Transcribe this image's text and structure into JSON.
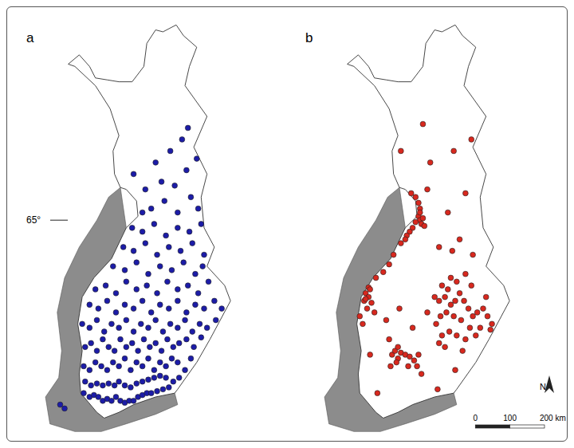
{
  "chart_data": [
    {
      "type": "scatter",
      "title": "a",
      "xlim": [
        16.5,
        35.5
      ],
      "ylim": [
        59.3,
        70.5
      ],
      "yticks": [
        {
          "value": 65,
          "label": "65°"
        }
      ],
      "tick_labels": "y",
      "color": "#1c1ca8",
      "marker": "circle",
      "points": [
        [
          21.6,
          60.5
        ],
        [
          22.0,
          60.4
        ],
        [
          22.3,
          60.45
        ],
        [
          22.6,
          60.4
        ],
        [
          22.9,
          60.3
        ],
        [
          23.2,
          60.35
        ],
        [
          23.5,
          60.3
        ],
        [
          23.8,
          60.4
        ],
        [
          24.1,
          60.3
        ],
        [
          24.4,
          60.25
        ],
        [
          24.7,
          60.3
        ],
        [
          25.0,
          60.3
        ],
        [
          25.3,
          60.4
        ],
        [
          25.6,
          60.45
        ],
        [
          25.9,
          60.5
        ],
        [
          26.2,
          60.5
        ],
        [
          26.6,
          60.55
        ],
        [
          27.0,
          60.6
        ],
        [
          27.4,
          60.65
        ],
        [
          20.0,
          60.2
        ],
        [
          20.3,
          60.1
        ],
        [
          21.7,
          60.8
        ],
        [
          22.1,
          60.7
        ],
        [
          22.5,
          60.75
        ],
        [
          22.9,
          60.7
        ],
        [
          23.3,
          60.75
        ],
        [
          23.7,
          60.7
        ],
        [
          24.0,
          60.8
        ],
        [
          24.4,
          60.7
        ],
        [
          24.8,
          60.65
        ],
        [
          25.2,
          60.75
        ],
        [
          25.6,
          60.8
        ],
        [
          26.0,
          60.85
        ],
        [
          26.4,
          60.9
        ],
        [
          26.8,
          60.95
        ],
        [
          27.2,
          60.9
        ],
        [
          27.7,
          60.8
        ],
        [
          28.1,
          60.9
        ],
        [
          21.6,
          61.2
        ],
        [
          22.0,
          61.1
        ],
        [
          22.4,
          61.3
        ],
        [
          22.8,
          61.2
        ],
        [
          23.2,
          61.1
        ],
        [
          23.6,
          61.3
        ],
        [
          24.0,
          61.2
        ],
        [
          24.4,
          61.4
        ],
        [
          24.8,
          61.1
        ],
        [
          25.2,
          61.3
        ],
        [
          25.6,
          61.2
        ],
        [
          26.0,
          61.4
        ],
        [
          26.4,
          61.1
        ],
        [
          26.8,
          61.3
        ],
        [
          27.2,
          61.2
        ],
        [
          27.6,
          61.4
        ],
        [
          28.0,
          61.3
        ],
        [
          28.5,
          61.1
        ],
        [
          28.9,
          61.4
        ],
        [
          21.7,
          61.7
        ],
        [
          22.1,
          61.8
        ],
        [
          22.5,
          61.6
        ],
        [
          22.9,
          61.9
        ],
        [
          23.3,
          61.7
        ],
        [
          23.7,
          61.6
        ],
        [
          24.1,
          61.9
        ],
        [
          24.5,
          61.7
        ],
        [
          24.9,
          61.8
        ],
        [
          25.3,
          61.6
        ],
        [
          25.7,
          61.9
        ],
        [
          26.1,
          61.7
        ],
        [
          26.5,
          61.8
        ],
        [
          26.9,
          61.6
        ],
        [
          27.3,
          61.9
        ],
        [
          27.7,
          61.7
        ],
        [
          28.1,
          61.8
        ],
        [
          28.6,
          61.9
        ],
        [
          29.1,
          61.7
        ],
        [
          29.6,
          61.95
        ],
        [
          21.5,
          62.3
        ],
        [
          22.0,
          62.2
        ],
        [
          22.5,
          62.4
        ],
        [
          23.0,
          62.1
        ],
        [
          23.5,
          62.3
        ],
        [
          24.0,
          62.2
        ],
        [
          24.5,
          62.4
        ],
        [
          25.0,
          62.1
        ],
        [
          25.5,
          62.3
        ],
        [
          26.0,
          62.2
        ],
        [
          26.5,
          62.4
        ],
        [
          27.0,
          62.1
        ],
        [
          27.5,
          62.3
        ],
        [
          28.0,
          62.2
        ],
        [
          28.5,
          62.4
        ],
        [
          29.0,
          62.1
        ],
        [
          29.5,
          62.3
        ],
        [
          30.0,
          62.2
        ],
        [
          30.6,
          62.4
        ],
        [
          22.0,
          62.8
        ],
        [
          22.6,
          62.7
        ],
        [
          23.2,
          62.9
        ],
        [
          23.8,
          62.6
        ],
        [
          24.4,
          62.8
        ],
        [
          25.0,
          62.7
        ],
        [
          25.6,
          62.9
        ],
        [
          26.2,
          62.6
        ],
        [
          26.8,
          62.8
        ],
        [
          27.4,
          62.7
        ],
        [
          28.0,
          62.9
        ],
        [
          28.6,
          62.6
        ],
        [
          29.2,
          62.8
        ],
        [
          29.8,
          62.7
        ],
        [
          30.5,
          62.9
        ],
        [
          31.0,
          62.7
        ],
        [
          22.4,
          63.2
        ],
        [
          23.1,
          63.3
        ],
        [
          23.8,
          63.1
        ],
        [
          24.5,
          63.4
        ],
        [
          25.2,
          63.2
        ],
        [
          25.9,
          63.3
        ],
        [
          26.6,
          63.1
        ],
        [
          27.3,
          63.4
        ],
        [
          28.0,
          63.2
        ],
        [
          28.7,
          63.3
        ],
        [
          29.4,
          63.1
        ],
        [
          30.1,
          63.4
        ],
        [
          23.6,
          63.8
        ],
        [
          24.4,
          63.7
        ],
        [
          25.2,
          63.9
        ],
        [
          26.0,
          63.6
        ],
        [
          26.8,
          63.8
        ],
        [
          27.6,
          63.7
        ],
        [
          28.4,
          63.9
        ],
        [
          29.2,
          63.6
        ],
        [
          29.7,
          63.8
        ],
        [
          24.3,
          64.3
        ],
        [
          25.0,
          64.2
        ],
        [
          25.8,
          64.4
        ],
        [
          26.6,
          64.1
        ],
        [
          27.4,
          64.3
        ],
        [
          28.2,
          64.2
        ],
        [
          29.0,
          64.4
        ],
        [
          29.8,
          64.1
        ],
        [
          24.9,
          64.8
        ],
        [
          25.6,
          64.7
        ],
        [
          26.4,
          64.9
        ],
        [
          27.2,
          64.6
        ],
        [
          28.0,
          64.8
        ],
        [
          28.8,
          64.7
        ],
        [
          29.6,
          64.9
        ],
        [
          25.6,
          65.2
        ],
        [
          26.2,
          65.3
        ],
        [
          27.1,
          65.5
        ],
        [
          28.0,
          65.2
        ],
        [
          28.9,
          65.6
        ],
        [
          29.4,
          65.3
        ],
        [
          25.8,
          65.8
        ],
        [
          26.9,
          66.0
        ],
        [
          27.8,
          65.9
        ],
        [
          28.6,
          66.3
        ],
        [
          29.3,
          66.6
        ],
        [
          26.5,
          66.5
        ],
        [
          27.5,
          66.8
        ],
        [
          28.3,
          67.1
        ],
        [
          28.7,
          67.4
        ],
        [
          25.0,
          66.2
        ]
      ]
    },
    {
      "type": "scatter",
      "title": "b",
      "xlim": [
        16.5,
        35.5
      ],
      "ylim": [
        59.3,
        70.5
      ],
      "tick_labels": false,
      "color": "#d8281e",
      "marker": "circle",
      "points": [
        [
          25.5,
          65.3
        ],
        [
          25.4,
          65.1
        ],
        [
          25.5,
          65.0
        ],
        [
          25.6,
          64.9
        ],
        [
          25.2,
          64.95
        ],
        [
          25.0,
          64.8
        ],
        [
          24.8,
          64.7
        ],
        [
          24.6,
          64.6
        ],
        [
          25.7,
          65.05
        ],
        [
          25.4,
          65.45
        ],
        [
          25.2,
          65.6
        ],
        [
          24.9,
          65.7
        ],
        [
          25.5,
          65.2
        ],
        [
          25.8,
          64.85
        ],
        [
          24.5,
          64.5
        ],
        [
          24.2,
          64.4
        ],
        [
          23.7,
          64.1
        ],
        [
          23.4,
          63.85
        ],
        [
          23.0,
          63.65
        ],
        [
          22.5,
          63.5
        ],
        [
          22.0,
          63.25
        ],
        [
          21.8,
          63.1
        ],
        [
          22.0,
          63.0
        ],
        [
          21.7,
          62.9
        ],
        [
          22.2,
          62.85
        ],
        [
          21.8,
          62.95
        ],
        [
          22.1,
          63.2
        ],
        [
          21.9,
          62.7
        ],
        [
          22.4,
          62.6
        ],
        [
          21.4,
          62.5
        ],
        [
          21.6,
          62.3
        ],
        [
          23.6,
          61.5
        ],
        [
          23.8,
          61.6
        ],
        [
          24.0,
          61.4
        ],
        [
          23.9,
          61.3
        ],
        [
          24.2,
          61.55
        ],
        [
          24.5,
          61.5
        ],
        [
          24.8,
          61.45
        ],
        [
          25.1,
          61.35
        ],
        [
          25.4,
          61.5
        ],
        [
          25.3,
          61.2
        ],
        [
          24.7,
          61.2
        ],
        [
          25.6,
          61.0
        ],
        [
          23.5,
          61.2
        ],
        [
          24.0,
          61.7
        ],
        [
          23.4,
          61.9
        ],
        [
          26.8,
          62.9
        ],
        [
          27.2,
          63.0
        ],
        [
          27.6,
          62.8
        ],
        [
          27.9,
          62.9
        ],
        [
          28.2,
          63.1
        ],
        [
          27.4,
          63.2
        ],
        [
          27.0,
          63.3
        ],
        [
          26.5,
          63.0
        ],
        [
          28.5,
          62.9
        ],
        [
          28.8,
          62.7
        ],
        [
          29.1,
          62.5
        ],
        [
          29.4,
          62.6
        ],
        [
          29.8,
          62.7
        ],
        [
          30.1,
          62.5
        ],
        [
          30.4,
          62.3
        ],
        [
          30.3,
          62.15
        ],
        [
          29.6,
          62.2
        ],
        [
          28.9,
          62.2
        ],
        [
          28.3,
          62.4
        ],
        [
          27.8,
          62.5
        ],
        [
          27.3,
          62.6
        ],
        [
          26.9,
          62.5
        ],
        [
          26.6,
          62.3
        ],
        [
          27.0,
          62.0
        ],
        [
          27.5,
          62.1
        ],
        [
          28.0,
          62.0
        ],
        [
          28.6,
          61.9
        ],
        [
          29.3,
          62.0
        ],
        [
          27.2,
          61.7
        ],
        [
          26.8,
          61.8
        ],
        [
          28.0,
          63.4
        ],
        [
          28.6,
          63.6
        ],
        [
          29.0,
          63.3
        ],
        [
          27.6,
          63.5
        ],
        [
          27.7,
          64.2
        ],
        [
          28.2,
          64.5
        ],
        [
          26.8,
          64.3
        ],
        [
          29.1,
          64.1
        ],
        [
          27.4,
          65.2
        ],
        [
          28.6,
          65.7
        ],
        [
          26.2,
          66.5
        ],
        [
          27.8,
          66.8
        ],
        [
          25.7,
          67.5
        ],
        [
          24.2,
          66.8
        ],
        [
          29.0,
          67.1
        ],
        [
          26.0,
          65.8
        ],
        [
          22.6,
          60.5
        ],
        [
          26.7,
          60.6
        ],
        [
          27.9,
          61.1
        ],
        [
          22.1,
          61.5
        ],
        [
          26.0,
          62.6
        ],
        [
          25.0,
          62.2
        ],
        [
          24.1,
          62.7
        ],
        [
          23.2,
          62.4
        ],
        [
          28.4,
          61.6
        ],
        [
          30.0,
          63.0
        ]
      ],
      "scale_bar": {
        "ticks": [
          0,
          100,
          {
            "value": 200,
            "label": "200 km"
          }
        ]
      },
      "north_arrow": "N"
    }
  ]
}
